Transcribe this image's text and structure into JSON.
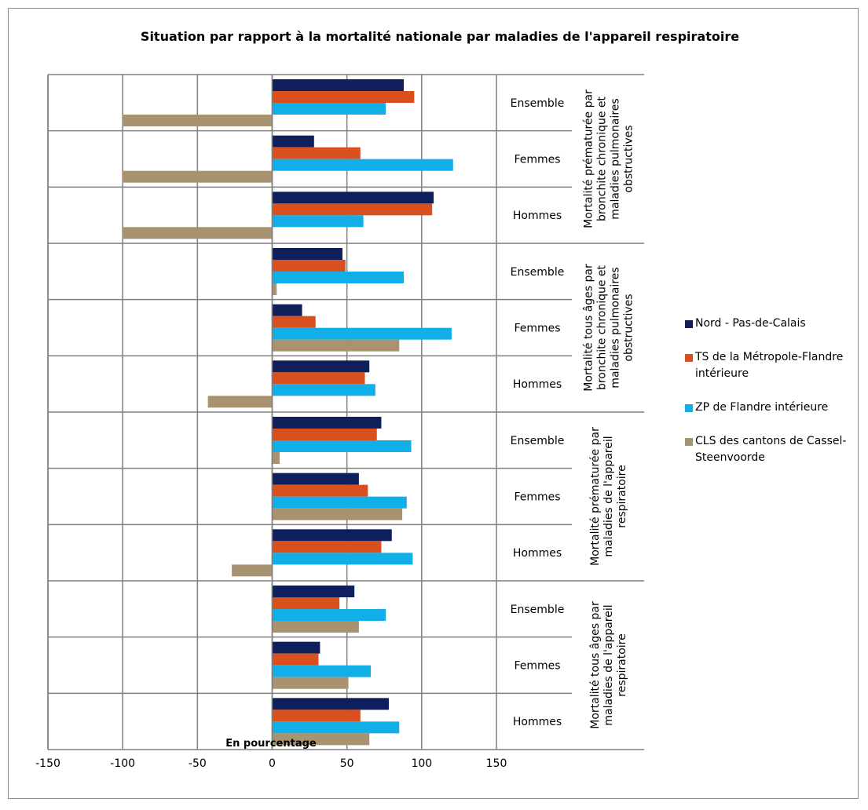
{
  "chart_data": {
    "type": "bar",
    "orientation": "horizontal",
    "title": "Situation par rapport à la mortalité nationale par maladies de l'appareil respiratoire",
    "xlabel": "En pourcentage",
    "xlim": [
      -150,
      150
    ],
    "xticks": [
      -150,
      -100,
      -50,
      0,
      50,
      100,
      150
    ],
    "grid": "vertical",
    "legend_position": "right",
    "groups": [
      {
        "label": "Mortalité prématurée par bronchite chronique et maladies pulmonaires obstructives",
        "label_lines": [
          "Mortalité prématurée par",
          "bronchite chronique et",
          "maladies pulmonaires",
          "obstructives"
        ],
        "categories": [
          "Ensemble",
          "Femmes",
          "Hommes"
        ]
      },
      {
        "label": "Mortalité tous âges par bronchite chronique et maladies pulmonaires obstructives",
        "label_lines": [
          "Mortalité tous âges par",
          "bronchite chronique et",
          "maladies pulmonaires",
          "obstructives"
        ],
        "categories": [
          "Ensemble",
          "Femmes",
          "Hommes"
        ]
      },
      {
        "label": "Mortalité prématurée par maladies de l'appareil respiratoire",
        "label_lines": [
          "Mortalité prématurée par",
          "maladies de l'appareil",
          "respiratoire"
        ],
        "categories": [
          "Ensemble",
          "Femmes",
          "Hommes"
        ]
      },
      {
        "label": "Mortalité tous âges par maladies de l'appareil respiratoire",
        "label_lines": [
          "Mortalité tous âges par",
          "maladies de l'appareil",
          "respiratoire"
        ],
        "categories": [
          "Ensemble",
          "Femmes",
          "Hommes"
        ]
      }
    ],
    "series": [
      {
        "name": "Nord - Pas-de-Calais",
        "color": "#0f1f5c",
        "values": [
          88,
          28,
          108,
          47,
          20,
          65,
          73,
          58,
          80,
          55,
          32,
          78
        ]
      },
      {
        "name": "TS de la Métropole-Flandre intérieure",
        "color": "#d9501e",
        "values": [
          95,
          59,
          107,
          49,
          29,
          62,
          70,
          64,
          73,
          45,
          31,
          59
        ]
      },
      {
        "name": "ZP de Flandre intérieure",
        "color": "#12aee8",
        "values": [
          76,
          121,
          61,
          88,
          120,
          69,
          93,
          90,
          94,
          76,
          66,
          85
        ]
      },
      {
        "name": "CLS des cantons de Cassel-Steenvoorde",
        "color": "#a9926f",
        "values": [
          -100,
          -100,
          -100,
          3,
          85,
          -43,
          5,
          87,
          -27,
          58,
          51,
          65
        ]
      }
    ]
  }
}
